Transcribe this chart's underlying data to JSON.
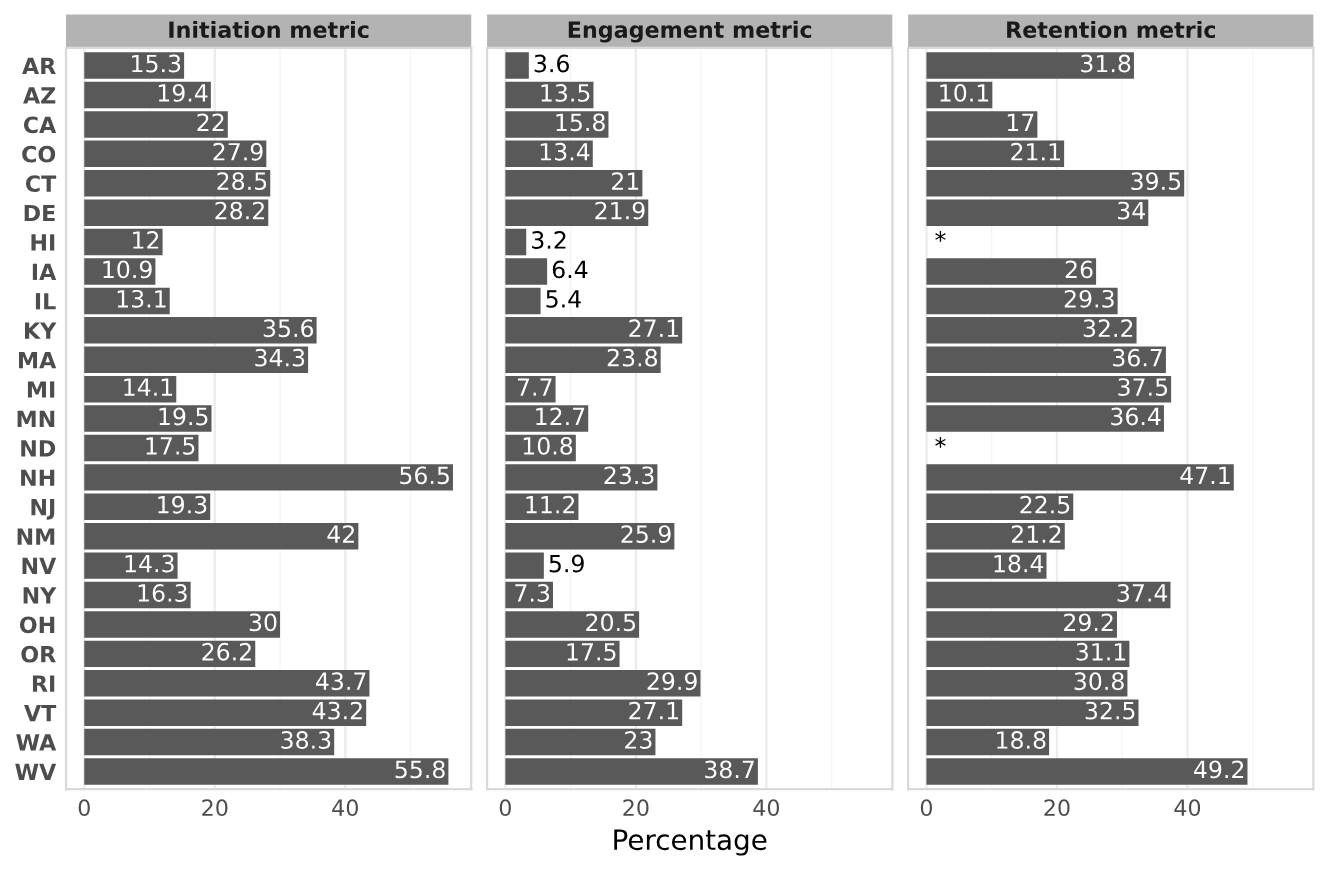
{
  "chart_data": [
    {
      "type": "bar",
      "orientation": "horizontal",
      "title": "Initiation metric",
      "categories": [
        "AR",
        "AZ",
        "CA",
        "CO",
        "CT",
        "DE",
        "HI",
        "IA",
        "IL",
        "KY",
        "MA",
        "MI",
        "MN",
        "ND",
        "NH",
        "NJ",
        "NM",
        "NV",
        "NY",
        "OH",
        "OR",
        "RI",
        "VT",
        "WA",
        "WV"
      ],
      "values": [
        15.3,
        19.4,
        22,
        27.9,
        28.5,
        28.2,
        12,
        10.9,
        13.1,
        35.6,
        34.3,
        14.1,
        19.5,
        17.5,
        56.5,
        19.3,
        42,
        14.3,
        16.3,
        30,
        26.2,
        43.7,
        43.2,
        38.3,
        55.8
      ],
      "value_labels": [
        "15.3",
        "19.4",
        "22",
        "27.9",
        "28.5",
        "28.2",
        "12",
        "10.9",
        "13.1",
        "35.6",
        "34.3",
        "14.1",
        "19.5",
        "17.5",
        "56.5",
        "19.3",
        "42",
        "14.3",
        "16.3",
        "30",
        "26.2",
        "43.7",
        "43.2",
        "38.3",
        "55.8"
      ],
      "color": "#595959",
      "xlim": [
        -2.8,
        59.3
      ],
      "xticks": [
        0,
        {
          "value": 10,
          "label": null
        },
        20,
        {
          "value": 30,
          "label": null
        },
        40,
        {
          "value": 50,
          "label": null
        }
      ],
      "grid": "x"
    },
    {
      "type": "bar",
      "orientation": "horizontal",
      "title": "Engagement metric",
      "xlabel": "Percentage",
      "tick_labels": "x",
      "categories": [
        null,
        null,
        null,
        null,
        null,
        null,
        null,
        null,
        null,
        null,
        null,
        null,
        null,
        null,
        null,
        null,
        null,
        null,
        null,
        null,
        null,
        null,
        null,
        null,
        null
      ],
      "values": [
        3.6,
        13.5,
        15.8,
        13.4,
        21,
        21.9,
        3.2,
        6.4,
        5.4,
        27.1,
        23.8,
        7.7,
        12.7,
        10.8,
        23.3,
        11.2,
        25.9,
        5.9,
        7.3,
        20.5,
        17.5,
        29.9,
        27.1,
        23,
        38.7
      ],
      "value_labels": [
        "3.6",
        "13.5",
        "15.8",
        "13.4",
        "21",
        "21.9",
        "3.2",
        "6.4",
        "5.4",
        "27.1",
        "23.8",
        "7.7",
        "12.7",
        "10.8",
        "23.3",
        "11.2",
        "25.9",
        "5.9",
        "7.3",
        "20.5",
        "17.5",
        "29.9",
        "27.1",
        "23",
        "38.7"
      ],
      "color": "#595959",
      "xlim": [
        -2.8,
        59.3
      ],
      "xticks": [
        0,
        {
          "value": 10,
          "label": null
        },
        20,
        {
          "value": 30,
          "label": null
        },
        40,
        {
          "value": 50,
          "label": null
        }
      ],
      "grid": "x"
    },
    {
      "type": "bar",
      "orientation": "horizontal",
      "title": "Retention metric",
      "tick_labels": "x",
      "categories": [
        null,
        null,
        null,
        null,
        null,
        null,
        null,
        null,
        null,
        null,
        null,
        null,
        null,
        null,
        null,
        null,
        null,
        null,
        null,
        null,
        null,
        null,
        null,
        null,
        null
      ],
      "values": [
        31.8,
        10.1,
        17,
        21.1,
        39.5,
        34,
        null,
        26,
        29.3,
        32.2,
        36.7,
        37.5,
        36.4,
        null,
        47.1,
        22.5,
        21.2,
        18.4,
        37.4,
        29.2,
        31.1,
        30.8,
        32.5,
        18.8,
        49.2
      ],
      "value_labels": [
        "31.8",
        "10.1",
        "17",
        "21.1",
        "39.5",
        "34",
        "*",
        "26",
        "29.3",
        "32.2",
        "36.7",
        "37.5",
        "36.4",
        "*",
        "47.1",
        "22.5",
        "21.2",
        "18.4",
        "37.4",
        "29.2",
        "31.1",
        "30.8",
        "32.5",
        "18.8",
        "49.2"
      ],
      "color": "#595959",
      "xlim": [
        -2.8,
        59.3
      ],
      "xticks": [
        0,
        {
          "value": 10,
          "label": null
        },
        20,
        {
          "value": 30,
          "label": null
        },
        40,
        {
          "value": 50,
          "label": null
        }
      ],
      "grid": "x"
    }
  ]
}
